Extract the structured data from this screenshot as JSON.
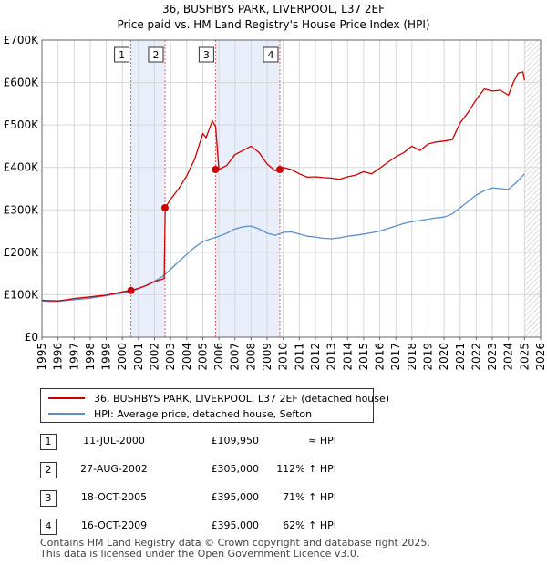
{
  "chart_data": {
    "type": "line",
    "title": "36, BUSHBYS PARK, LIVERPOOL, L37 2EF",
    "subtitle": "Price paid vs. HM Land Registry's House Price Index (HPI)",
    "xlabel": "",
    "ylabel": "",
    "xlim": [
      1995,
      2026
    ],
    "ylim": [
      0,
      700000
    ],
    "y_ticks": [
      0,
      100000,
      200000,
      300000,
      400000,
      500000,
      600000,
      700000
    ],
    "y_tick_labels": [
      "£0",
      "£100K",
      "£200K",
      "£300K",
      "£400K",
      "£500K",
      "£600K",
      "£700K"
    ],
    "x_ticks": [
      1995,
      1996,
      1997,
      1998,
      1999,
      2000,
      2001,
      2002,
      2003,
      2004,
      2005,
      2006,
      2007,
      2008,
      2009,
      2010,
      2011,
      2012,
      2013,
      2014,
      2015,
      2016,
      2017,
      2018,
      2019,
      2020,
      2021,
      2022,
      2023,
      2024,
      2025,
      2026
    ],
    "x_tick_labels": [
      "1995",
      "1996",
      "1997",
      "1998",
      "1999",
      "2000",
      "2001",
      "2002",
      "2003",
      "2004",
      "2005",
      "2006",
      "2007",
      "2008",
      "2009",
      "2010",
      "2011",
      "2012",
      "2013",
      "2014",
      "2015",
      "2016",
      "2017",
      "2018",
      "2019",
      "2020",
      "2021",
      "2022",
      "2023",
      "2024",
      "2025",
      "2026"
    ],
    "grid": true,
    "series": [
      {
        "name": "36, BUSHBYS PARK, LIVERPOOL, L37 2EF (detached house)",
        "color": "#cc0000",
        "x": [
          1995.0,
          1995.5,
          1996.0,
          1996.5,
          1997.0,
          1997.5,
          1998.0,
          1998.5,
          1999.0,
          1999.5,
          2000.0,
          2000.53,
          2001.0,
          2001.5,
          2002.0,
          2002.6,
          2002.66,
          2003.0,
          2003.5,
          2004.0,
          2004.5,
          2005.0,
          2005.2,
          2005.4,
          2005.6,
          2005.8,
          2006.0,
          2006.5,
          2007.0,
          2007.5,
          2008.0,
          2008.5,
          2009.0,
          2009.5,
          2009.79,
          2010.0,
          2010.5,
          2011.0,
          2011.5,
          2012.0,
          2012.5,
          2013.0,
          2013.5,
          2014.0,
          2014.5,
          2015.0,
          2015.5,
          2016.0,
          2016.5,
          2017.0,
          2017.5,
          2018.0,
          2018.5,
          2019.0,
          2019.5,
          2020.0,
          2020.5,
          2021.0,
          2021.5,
          2022.0,
          2022.5,
          2023.0,
          2023.5,
          2024.0,
          2024.3,
          2024.6,
          2024.9,
          2025.0
        ],
        "values": [
          87000,
          86000,
          85500,
          88000,
          91000,
          93000,
          95000,
          97000,
          99000,
          103000,
          107000,
          109950,
          115000,
          122000,
          131000,
          138000,
          305000,
          325000,
          350000,
          380000,
          420000,
          480000,
          470000,
          490000,
          510000,
          495000,
          395000,
          405000,
          430000,
          440000,
          450000,
          435000,
          408000,
          392000,
          395000,
          400000,
          395000,
          385000,
          377000,
          378000,
          376000,
          375000,
          372000,
          378000,
          382000,
          390000,
          385000,
          398000,
          412000,
          425000,
          435000,
          450000,
          440000,
          455000,
          460000,
          462000,
          465000,
          505000,
          530000,
          560000,
          585000,
          580000,
          582000,
          570000,
          600000,
          622000,
          625000,
          605000
        ]
      },
      {
        "name": "HPI: Average price, detached house, Sefton",
        "color": "#5b8fc9",
        "x": [
          1995.0,
          1995.5,
          1996.0,
          1996.5,
          1997.0,
          1997.5,
          1998.0,
          1998.5,
          1999.0,
          1999.5,
          2000.0,
          2000.5,
          2001.0,
          2001.5,
          2002.0,
          2002.5,
          2003.0,
          2003.5,
          2004.0,
          2004.5,
          2005.0,
          2005.5,
          2006.0,
          2006.5,
          2007.0,
          2007.5,
          2008.0,
          2008.5,
          2009.0,
          2009.5,
          2010.0,
          2010.5,
          2011.0,
          2011.5,
          2012.0,
          2012.5,
          2013.0,
          2013.5,
          2014.0,
          2014.5,
          2015.0,
          2015.5,
          2016.0,
          2016.5,
          2017.0,
          2017.5,
          2018.0,
          2018.5,
          2019.0,
          2019.5,
          2020.0,
          2020.5,
          2021.0,
          2021.5,
          2022.0,
          2022.5,
          2023.0,
          2023.5,
          2024.0,
          2024.5,
          2025.0
        ],
        "values": [
          85000,
          84000,
          84500,
          86500,
          88500,
          90000,
          92000,
          95000,
          98000,
          101000,
          104000,
          108000,
          114000,
          122000,
          132000,
          143000,
          160000,
          178000,
          195000,
          212000,
          225000,
          232000,
          238000,
          245000,
          255000,
          260000,
          262000,
          255000,
          245000,
          240000,
          247000,
          248000,
          243000,
          238000,
          236000,
          233000,
          232000,
          234000,
          238000,
          240000,
          243000,
          246000,
          250000,
          256000,
          262000,
          268000,
          272000,
          275000,
          278000,
          281000,
          283000,
          290000,
          305000,
          320000,
          335000,
          345000,
          352000,
          350000,
          348000,
          365000,
          385000
        ]
      }
    ],
    "sales": [
      {
        "label": "1",
        "year": 2000.53,
        "price": 109950
      },
      {
        "label": "2",
        "year": 2002.65,
        "price": 305000
      },
      {
        "label": "3",
        "year": 2005.79,
        "price": 395000
      },
      {
        "label": "4",
        "year": 2009.79,
        "price": 395000
      }
    ],
    "shaded_periods": [
      [
        2000.53,
        2002.65
      ],
      [
        2005.79,
        2009.79
      ]
    ],
    "forecast_start": 2025.0
  },
  "legend": {
    "property_label": "36, BUSHBYS PARK, LIVERPOOL, L37 2EF (detached house)",
    "hpi_label": "HPI: Average price, detached house, Sefton"
  },
  "transactions": [
    {
      "num": "1",
      "date": "11-JUL-2000",
      "price": "£109,950",
      "hpi": "≈ HPI"
    },
    {
      "num": "2",
      "date": "27-AUG-2002",
      "price": "£305,000",
      "hpi": "112% ↑ HPI"
    },
    {
      "num": "3",
      "date": "18-OCT-2005",
      "price": "£395,000",
      "hpi": "71% ↑ HPI"
    },
    {
      "num": "4",
      "date": "16-OCT-2009",
      "price": "£395,000",
      "hpi": "62% ↑ HPI"
    }
  ],
  "footer": {
    "line1": "Contains HM Land Registry data © Crown copyright and database right 2025.",
    "line2": "This data is licensed under the Open Government Licence v3.0."
  },
  "colors": {
    "property": "#cc0000",
    "hpi": "#5b8fc9",
    "shade": "#e8eefa",
    "grid": "#d8d8d8"
  }
}
